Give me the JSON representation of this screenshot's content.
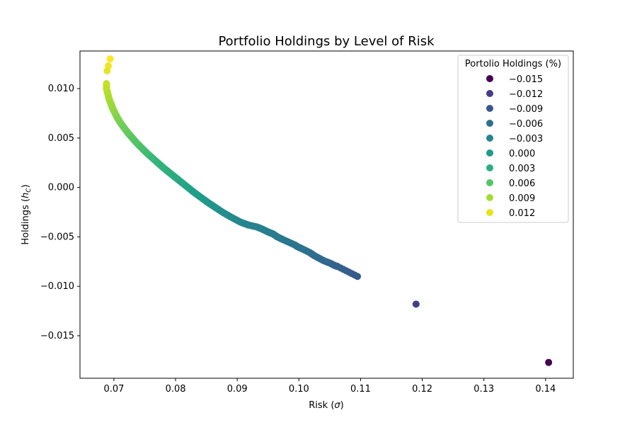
{
  "chart_data": {
    "type": "scatter",
    "title": "Portfolio Holdings by Level of Risk",
    "xlabel_main": "Risk (",
    "xlabel_sym": "σ",
    "xlabel_tail": ")",
    "ylabel_main": "Holdings (",
    "ylabel_sym": "h",
    "ylabel_sub": "C",
    "ylabel_tail": ")",
    "xlim": [
      0.0645,
      0.1445
    ],
    "ylim": [
      -0.0193,
      0.0138
    ],
    "xticks": [
      {
        "value": 0.07,
        "label": "0.07"
      },
      {
        "value": 0.08,
        "label": "0.08"
      },
      {
        "value": 0.09,
        "label": "0.09"
      },
      {
        "value": 0.1,
        "label": "0.10"
      },
      {
        "value": 0.11,
        "label": "0.11"
      },
      {
        "value": 0.12,
        "label": "0.12"
      },
      {
        "value": 0.13,
        "label": "0.13"
      },
      {
        "value": 0.14,
        "label": "0.14"
      }
    ],
    "yticks": [
      {
        "value": 0.01,
        "label": "0.010"
      },
      {
        "value": 0.005,
        "label": "0.005"
      },
      {
        "value": 0.0,
        "label": "0.000"
      },
      {
        "value": -0.005,
        "label": "−0.005"
      },
      {
        "value": -0.01,
        "label": "−0.010"
      },
      {
        "value": -0.015,
        "label": "−0.015"
      }
    ],
    "color_scale": {
      "min": -0.0177,
      "max": 0.013,
      "stops": [
        "#440154",
        "#482878",
        "#3e4989",
        "#31688e",
        "#26828e",
        "#1f9e89",
        "#35b779",
        "#6ece58",
        "#b5de2b",
        "#fde725"
      ]
    },
    "legend": {
      "title": "Portolio Holdings (%)",
      "position": "top-right",
      "entries": [
        {
          "label": "−0.015",
          "color": "#440154"
        },
        {
          "label": "−0.012",
          "color": "#433e85"
        },
        {
          "label": "−0.009",
          "color": "#38588c"
        },
        {
          "label": "−0.006",
          "color": "#2d708e"
        },
        {
          "label": "−0.003",
          "color": "#25858e"
        },
        {
          "label": "0.000",
          "color": "#1e9b8a"
        },
        {
          "label": "0.003",
          "color": "#2ab07f"
        },
        {
          "label": "0.006",
          "color": "#52c569"
        },
        {
          "label": "0.009",
          "color": "#a5db36"
        },
        {
          "label": "0.012",
          "color": "#e5e419"
        }
      ]
    },
    "points": [
      {
        "x": 0.0694,
        "y": 0.013
      },
      {
        "x": 0.0691,
        "y": 0.0123
      },
      {
        "x": 0.0689,
        "y": 0.0118
      },
      {
        "x": 0.0688,
        "y": 0.0105
      },
      {
        "x": 0.0688,
        "y": 0.01
      },
      {
        "x": 0.069,
        "y": 0.0095
      },
      {
        "x": 0.0692,
        "y": 0.009
      },
      {
        "x": 0.0695,
        "y": 0.0085
      },
      {
        "x": 0.0698,
        "y": 0.008
      },
      {
        "x": 0.0702,
        "y": 0.0075
      },
      {
        "x": 0.0706,
        "y": 0.007
      },
      {
        "x": 0.0711,
        "y": 0.0065
      },
      {
        "x": 0.0717,
        "y": 0.006
      },
      {
        "x": 0.0723,
        "y": 0.0055
      },
      {
        "x": 0.073,
        "y": 0.005
      },
      {
        "x": 0.0737,
        "y": 0.0045
      },
      {
        "x": 0.0745,
        "y": 0.004
      },
      {
        "x": 0.0753,
        "y": 0.0035
      },
      {
        "x": 0.0762,
        "y": 0.003
      },
      {
        "x": 0.0771,
        "y": 0.0025
      },
      {
        "x": 0.078,
        "y": 0.002
      },
      {
        "x": 0.079,
        "y": 0.0015
      },
      {
        "x": 0.08,
        "y": 0.001
      },
      {
        "x": 0.081,
        "y": 0.0005
      },
      {
        "x": 0.082,
        "y": 0.0
      },
      {
        "x": 0.083,
        "y": -0.0005
      },
      {
        "x": 0.0841,
        "y": -0.001
      },
      {
        "x": 0.0852,
        "y": -0.0015
      },
      {
        "x": 0.0864,
        "y": -0.002
      },
      {
        "x": 0.0876,
        "y": -0.0025
      },
      {
        "x": 0.089,
        "y": -0.003
      },
      {
        "x": 0.0905,
        "y": -0.0035
      },
      {
        "x": 0.0918,
        "y": -0.0038
      },
      {
        "x": 0.0932,
        "y": -0.004
      },
      {
        "x": 0.094,
        "y": -0.0042
      },
      {
        "x": 0.095,
        "y": -0.0045
      },
      {
        "x": 0.0958,
        "y": -0.0047
      },
      {
        "x": 0.0965,
        "y": -0.005
      },
      {
        "x": 0.0975,
        "y": -0.0053
      },
      {
        "x": 0.0993,
        "y": -0.0058
      },
      {
        "x": 0.0998,
        "y": -0.006
      },
      {
        "x": 0.1005,
        "y": -0.0062
      },
      {
        "x": 0.1018,
        "y": -0.0066
      },
      {
        "x": 0.1025,
        "y": -0.0069
      },
      {
        "x": 0.104,
        "y": -0.0074
      },
      {
        "x": 0.1052,
        "y": -0.0077
      },
      {
        "x": 0.1058,
        "y": -0.0079
      },
      {
        "x": 0.1063,
        "y": -0.008
      },
      {
        "x": 0.1095,
        "y": -0.009
      },
      {
        "x": 0.119,
        "y": -0.0118
      },
      {
        "x": 0.1405,
        "y": -0.0177
      }
    ]
  }
}
